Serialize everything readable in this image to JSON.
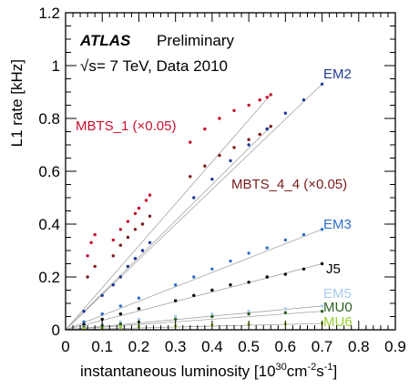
{
  "chart_data": {
    "type": "scatter",
    "xlabel": "instantaneous luminosity [10",
    "xlabel_exp1": "30",
    "xlabel_mid1": "cm",
    "xlabel_exp2": "-2",
    "xlabel_mid2": "s",
    "xlabel_exp3": "-1",
    "xlabel_end": "]",
    "ylabel": "L1 rate [kHz]",
    "xlim": [
      0,
      0.9
    ],
    "ylim": [
      0,
      1.2
    ],
    "x_ticks": [
      "0",
      "0.1",
      "0.2",
      "0.3",
      "0.4",
      "0.5",
      "0.6",
      "0.7",
      "0.8",
      "0.9"
    ],
    "y_ticks": [
      "0",
      "0.2",
      "0.4",
      "0.6",
      "0.8",
      "1",
      "1.2"
    ],
    "annotations": {
      "atlas": "ATLAS",
      "preliminary": "Preliminary",
      "energy": "√s= 7 TeV, Data 2010"
    },
    "series": [
      {
        "name": "MBTS_1 (×0.05)",
        "color": "#c8102e",
        "points": [
          [
            0.06,
            0.28
          ],
          [
            0.07,
            0.33
          ],
          [
            0.08,
            0.36
          ],
          [
            0.13,
            0.34
          ],
          [
            0.15,
            0.38
          ],
          [
            0.17,
            0.41
          ],
          [
            0.19,
            0.44
          ],
          [
            0.2,
            0.46
          ],
          [
            0.22,
            0.49
          ],
          [
            0.23,
            0.51
          ],
          [
            0.34,
            0.71
          ],
          [
            0.38,
            0.76
          ],
          [
            0.42,
            0.8
          ],
          [
            0.46,
            0.83
          ],
          [
            0.5,
            0.85
          ],
          [
            0.53,
            0.87
          ],
          [
            0.55,
            0.88
          ],
          [
            0.56,
            0.89
          ]
        ]
      },
      {
        "name": "MBTS_4_4 (×0.05)",
        "color": "#7a1a1a",
        "points": [
          [
            0.06,
            0.2
          ],
          [
            0.08,
            0.24
          ],
          [
            0.13,
            0.28
          ],
          [
            0.15,
            0.32
          ],
          [
            0.17,
            0.35
          ],
          [
            0.19,
            0.38
          ],
          [
            0.21,
            0.4
          ],
          [
            0.23,
            0.43
          ],
          [
            0.34,
            0.58
          ],
          [
            0.38,
            0.62
          ],
          [
            0.42,
            0.66
          ],
          [
            0.46,
            0.69
          ],
          [
            0.5,
            0.72
          ],
          [
            0.53,
            0.74
          ],
          [
            0.55,
            0.76
          ],
          [
            0.56,
            0.77
          ]
        ]
      },
      {
        "name": "EM2",
        "color": "#1f3a93",
        "points": [
          [
            0.05,
            0.07
          ],
          [
            0.1,
            0.13
          ],
          [
            0.13,
            0.17
          ],
          [
            0.15,
            0.2
          ],
          [
            0.17,
            0.24
          ],
          [
            0.19,
            0.27
          ],
          [
            0.21,
            0.3
          ],
          [
            0.23,
            0.33
          ],
          [
            0.35,
            0.5
          ],
          [
            0.4,
            0.57
          ],
          [
            0.45,
            0.64
          ],
          [
            0.5,
            0.7
          ],
          [
            0.55,
            0.76
          ],
          [
            0.6,
            0.82
          ],
          [
            0.65,
            0.87
          ],
          [
            0.7,
            0.93
          ]
        ]
      },
      {
        "name": "EM3",
        "color": "#2e6fce",
        "points": [
          [
            0.05,
            0.03
          ],
          [
            0.1,
            0.06
          ],
          [
            0.15,
            0.09
          ],
          [
            0.2,
            0.12
          ],
          [
            0.3,
            0.17
          ],
          [
            0.35,
            0.2
          ],
          [
            0.4,
            0.23
          ],
          [
            0.45,
            0.26
          ],
          [
            0.5,
            0.29
          ],
          [
            0.55,
            0.31
          ],
          [
            0.6,
            0.34
          ],
          [
            0.65,
            0.36
          ],
          [
            0.7,
            0.38
          ]
        ]
      },
      {
        "name": "J5",
        "color": "#000000",
        "points": [
          [
            0.05,
            0.02
          ],
          [
            0.1,
            0.04
          ],
          [
            0.15,
            0.06
          ],
          [
            0.2,
            0.08
          ],
          [
            0.3,
            0.11
          ],
          [
            0.35,
            0.13
          ],
          [
            0.4,
            0.15
          ],
          [
            0.45,
            0.17
          ],
          [
            0.5,
            0.18
          ],
          [
            0.55,
            0.2
          ],
          [
            0.6,
            0.21
          ],
          [
            0.65,
            0.23
          ],
          [
            0.7,
            0.25
          ]
        ]
      },
      {
        "name": "EM5",
        "color": "#a9cbee",
        "points": [
          [
            0.05,
            0.01
          ],
          [
            0.1,
            0.02
          ],
          [
            0.15,
            0.03
          ],
          [
            0.2,
            0.04
          ],
          [
            0.3,
            0.05
          ],
          [
            0.4,
            0.06
          ],
          [
            0.5,
            0.07
          ],
          [
            0.6,
            0.08
          ],
          [
            0.7,
            0.09
          ]
        ]
      },
      {
        "name": "MU0",
        "color": "#2e5e1e",
        "points": [
          [
            0.05,
            0.008
          ],
          [
            0.1,
            0.015
          ],
          [
            0.15,
            0.022
          ],
          [
            0.2,
            0.03
          ],
          [
            0.3,
            0.04
          ],
          [
            0.4,
            0.05
          ],
          [
            0.5,
            0.06
          ],
          [
            0.6,
            0.065
          ],
          [
            0.7,
            0.07
          ]
        ]
      },
      {
        "name": "MU6",
        "color": "#9acd32",
        "points": [
          [
            0.05,
            0.004
          ],
          [
            0.1,
            0.007
          ],
          [
            0.15,
            0.01
          ],
          [
            0.2,
            0.012
          ],
          [
            0.3,
            0.015
          ],
          [
            0.4,
            0.018
          ],
          [
            0.5,
            0.02
          ],
          [
            0.6,
            0.022
          ],
          [
            0.7,
            0.024
          ]
        ]
      }
    ]
  }
}
